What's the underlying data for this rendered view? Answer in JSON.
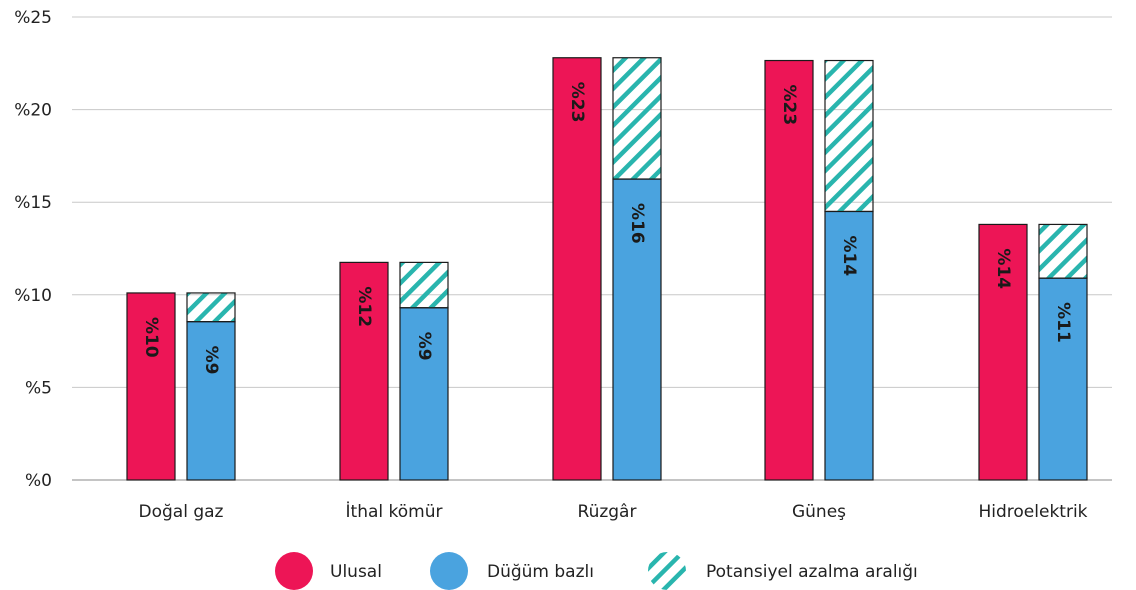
{
  "chart_data": {
    "type": "bar",
    "categories": [
      "Doğal gaz",
      "İthal kömür",
      "Rüzgâr",
      "Güneş",
      "Hidroelektrik"
    ],
    "series": [
      {
        "name": "Ulusal",
        "values": [
          10.1,
          11.75,
          22.8,
          22.65,
          13.8
        ],
        "labels": [
          "%10",
          "%12",
          "%23",
          "%23",
          "%14"
        ]
      },
      {
        "name": "Düğüm bazlı",
        "values": [
          8.55,
          9.3,
          16.25,
          14.5,
          10.9
        ],
        "labels": [
          "%9",
          "%9",
          "%16",
          "%14",
          "%11"
        ]
      }
    ],
    "range_series": {
      "name": "Potansiyel azalma aralığı",
      "from": [
        8.55,
        9.3,
        16.25,
        14.5,
        10.9
      ],
      "to": [
        10.1,
        11.75,
        22.8,
        22.65,
        13.8
      ]
    },
    "ylim": [
      0,
      25
    ],
    "yticks": [
      {
        "value": 0,
        "label": "%0"
      },
      {
        "value": 5,
        "label": "%5"
      },
      {
        "value": 10,
        "label": "%10"
      },
      {
        "value": 15,
        "label": "%15"
      },
      {
        "value": 20,
        "label": "%20"
      },
      {
        "value": 25,
        "label": "%25"
      }
    ],
    "grid": true,
    "legend_position": "bottom-center",
    "colors": {
      "ulusal": "#ED1556",
      "dugum": "#4AA3DF",
      "hatch": "#29B5AE",
      "outline": "#1a1a1a",
      "grid": "#c8c8c8"
    }
  }
}
